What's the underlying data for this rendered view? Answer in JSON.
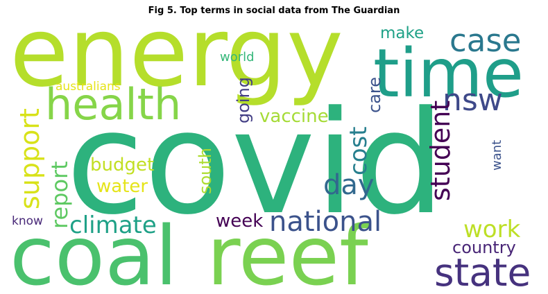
{
  "title": "Fig 5. Top terms in social data from The Guardian",
  "words": [
    {
      "text": "covid",
      "color": "#2db27d"
    },
    {
      "text": "energy",
      "color": "#b5de2b"
    },
    {
      "text": "time",
      "color": "#1f9e89"
    },
    {
      "text": "coal",
      "color": "#4ac16d"
    },
    {
      "text": "reef",
      "color": "#7ad151"
    },
    {
      "text": "health",
      "color": "#86d549"
    },
    {
      "text": "case",
      "color": "#2a788e"
    },
    {
      "text": "state",
      "color": "#46327e"
    },
    {
      "text": "nsw",
      "color": "#3e4989"
    },
    {
      "text": "national",
      "color": "#3b528b"
    },
    {
      "text": "climate",
      "color": "#1fa187"
    },
    {
      "text": "day",
      "color": "#31688e"
    },
    {
      "text": "support",
      "color": "#d8e219"
    },
    {
      "text": "student",
      "color": "#440154"
    },
    {
      "text": "cost",
      "color": "#277f8e"
    },
    {
      "text": "report",
      "color": "#5ec962"
    },
    {
      "text": "work",
      "color": "#bddf26"
    },
    {
      "text": "vaccine",
      "color": "#a5db36"
    },
    {
      "text": "budget",
      "color": "#c2df23"
    },
    {
      "text": "care",
      "color": "#3b528b"
    },
    {
      "text": "going",
      "color": "#433e85"
    },
    {
      "text": "country",
      "color": "#482576"
    },
    {
      "text": "week",
      "color": "#440154"
    },
    {
      "text": "water",
      "color": "#e5e419"
    },
    {
      "text": "south",
      "color": "#addc30"
    },
    {
      "text": "make",
      "color": "#1fa187"
    },
    {
      "text": "want",
      "color": "#3b528b"
    },
    {
      "text": "world",
      "color": "#35b779"
    },
    {
      "text": "australians",
      "color": "#e5e419"
    },
    {
      "text": "know",
      "color": "#482878"
    }
  ]
}
